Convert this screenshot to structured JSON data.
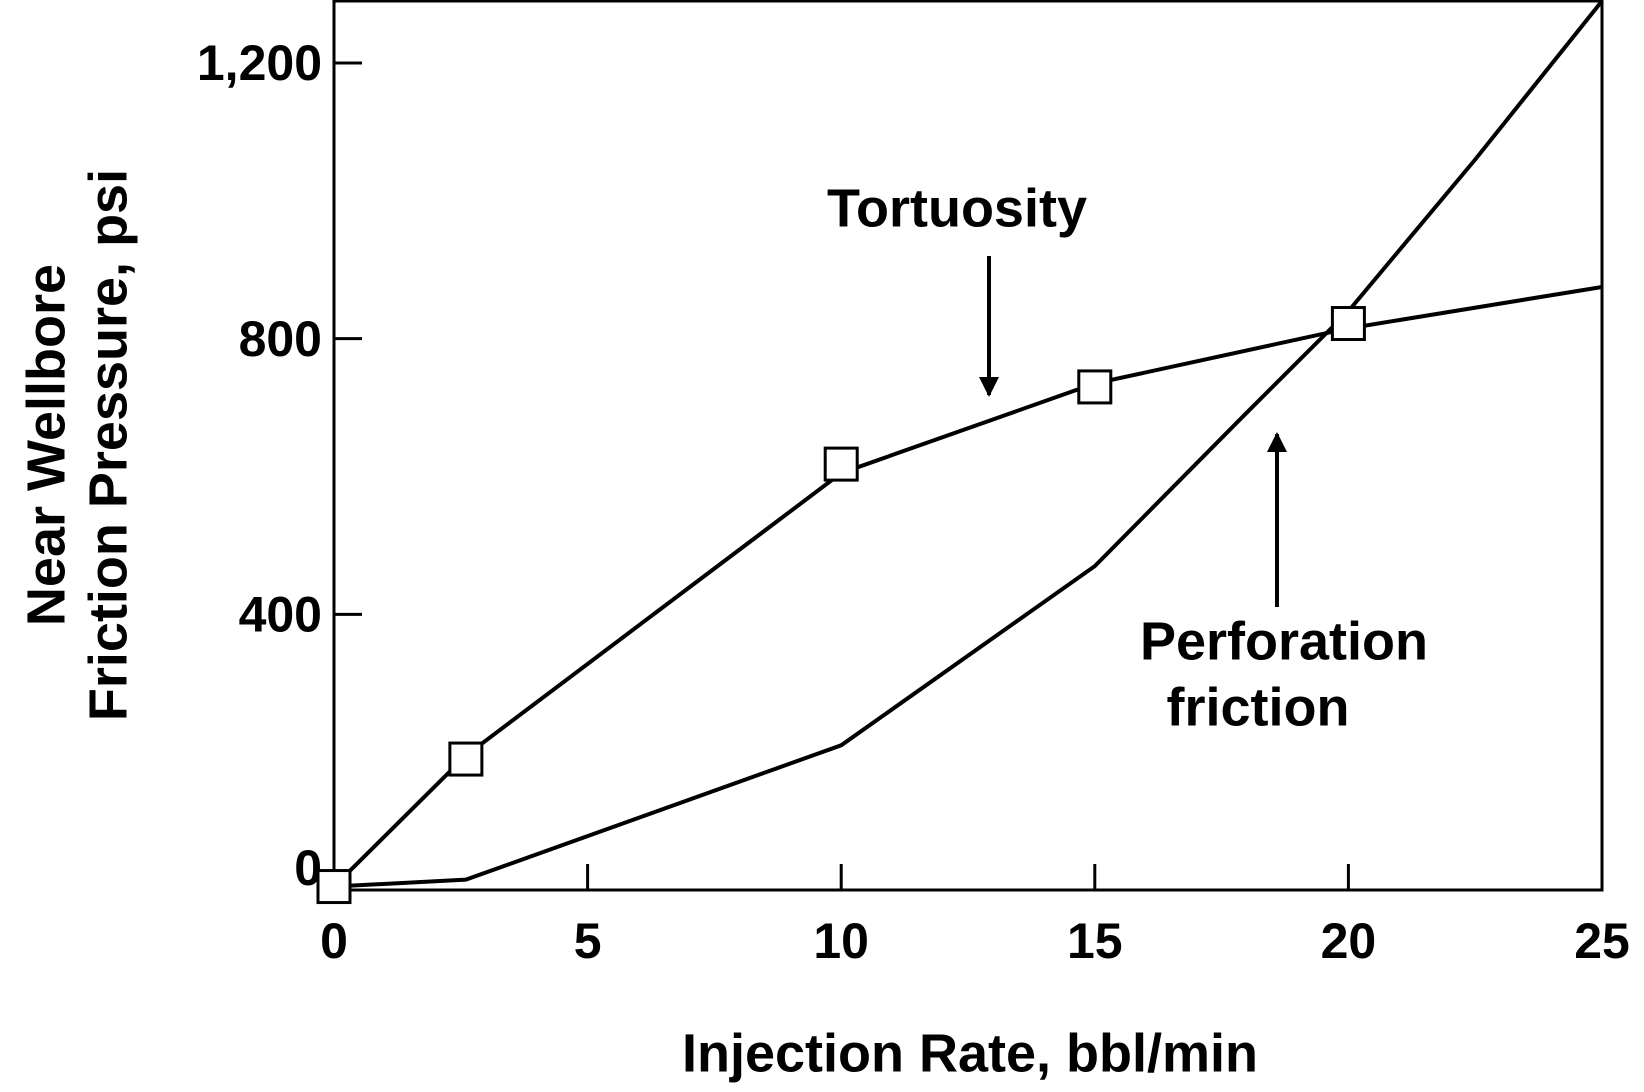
{
  "chart_data": {
    "type": "line",
    "x_label": "Injection Rate, bbl/min",
    "y_label": [
      "Near Wellbore",
      "Friction Pressure, psi"
    ],
    "xlim": [
      0,
      25
    ],
    "xticks": [
      0,
      5,
      10,
      15,
      20,
      25
    ],
    "ylim": [
      0,
      1290
    ],
    "yticks": [
      0,
      400,
      800,
      {
        "value": 1200,
        "label": "1,200"
      }
    ],
    "series": [
      {
        "name": "Tortuosity",
        "color": "#000000",
        "x": [
          0,
          2.6,
          10,
          15,
          20,
          25
        ],
        "values": [
          5,
          195,
          605,
          735,
          815,
          875
        ]
      },
      {
        "name": [
          "Perforation",
          "friction"
        ],
        "color": "#000000",
        "x": [
          0,
          2.6,
          10,
          15,
          18,
          20,
          22.5,
          25
        ],
        "values": [
          5,
          15,
          210,
          470,
          693,
          840,
          1060,
          1290
        ]
      }
    ],
    "markers": {
      "x": [
        0,
        2.6,
        10,
        15,
        20
      ],
      "values": [
        5,
        190,
        618,
        730,
        822
      ]
    }
  }
}
